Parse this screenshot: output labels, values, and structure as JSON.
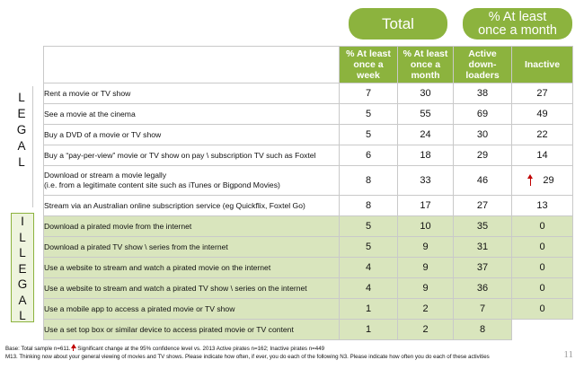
{
  "header": {
    "total_label": "Total",
    "month_label_line1": "% At least",
    "month_label_line2": "once a month"
  },
  "columns": [
    {
      "line1": "% At least",
      "line2": "once a",
      "line3": "week"
    },
    {
      "line1": "% At least",
      "line2": "once a",
      "line3": "month"
    },
    {
      "line1": "Active",
      "line2": "down-",
      "line3": "loaders"
    },
    {
      "line1": "Inactive",
      "line2": "",
      "line3": ""
    }
  ],
  "side_labels": {
    "legal": [
      "L",
      "E",
      "G",
      "A",
      "L"
    ],
    "illegal": [
      "I",
      "L",
      "L",
      "E",
      "G",
      "A",
      "L"
    ]
  },
  "rows": [
    {
      "label": "Rent a movie or TV show",
      "week": "7",
      "month": "30",
      "active": "38",
      "inactive": "27"
    },
    {
      "label": "See a movie at the cinema",
      "week": "5",
      "month": "55",
      "active": "69",
      "inactive": "49"
    },
    {
      "label": "Buy a DVD of a movie or TV show",
      "week": "5",
      "month": "24",
      "active": "30",
      "inactive": "22"
    },
    {
      "label": "Buy a “pay-per-view” movie or TV show  on pay \\ subscription TV such as Foxtel",
      "week": "6",
      "month": "18",
      "active": "29",
      "inactive": "14"
    },
    {
      "label": "Download or stream a movie  legally",
      "label2": "(i.e. from a legitimate content site such as iTunes or Bigpond Movies)",
      "week": "8",
      "month": "33",
      "active": "46",
      "inactive": "29"
    },
    {
      "label": "Stream via an Australian online subscription service (eg Quickflix, Foxtel Go)",
      "week": "8",
      "month": "17",
      "active": "27",
      "inactive": "13"
    },
    {
      "label": "Download a pirated movie from the internet",
      "week": "5",
      "month": "10",
      "active": "35",
      "inactive": "0"
    },
    {
      "label": "Download a pirated TV show \\ series from the internet",
      "week": "5",
      "month": "9",
      "active": "31",
      "inactive": "0"
    },
    {
      "label": "Use a website to stream and watch a pirated movie on the internet",
      "week": "4",
      "month": "9",
      "active": "37",
      "inactive": "0"
    },
    {
      "label": "Use a website to stream and watch a pirated TV show \\ series on the internet",
      "week": "4",
      "month": "9",
      "active": "36",
      "inactive": "0"
    },
    {
      "label": "Use a mobile app to access a pirated movie or TV show",
      "week": "1",
      "month": "2",
      "active": "7",
      "inactive": "0"
    },
    {
      "label": "Use a set top box or similar device to access pirated movie or TV content",
      "week": "1",
      "month": "2",
      "active": "8",
      "inactive": ""
    }
  ],
  "footer": {
    "line1_a": "Base: Total sample n=611.",
    "line1_b": " Significant change at the 95% confidence level vs. 2013 Active pirates n=162; Inactive pirates n=449",
    "line2": "M13. Thinking now about your general viewing of movies and TV shows. Please indicate how often, if ever, you do each of the following N3. Please indicate how often you do each of these activities"
  },
  "page_number": "11",
  "colors": {
    "accent_green": "#8cb33e",
    "illegal_row_bg": "#d9e5bd",
    "arrow_red": "#c00000"
  }
}
